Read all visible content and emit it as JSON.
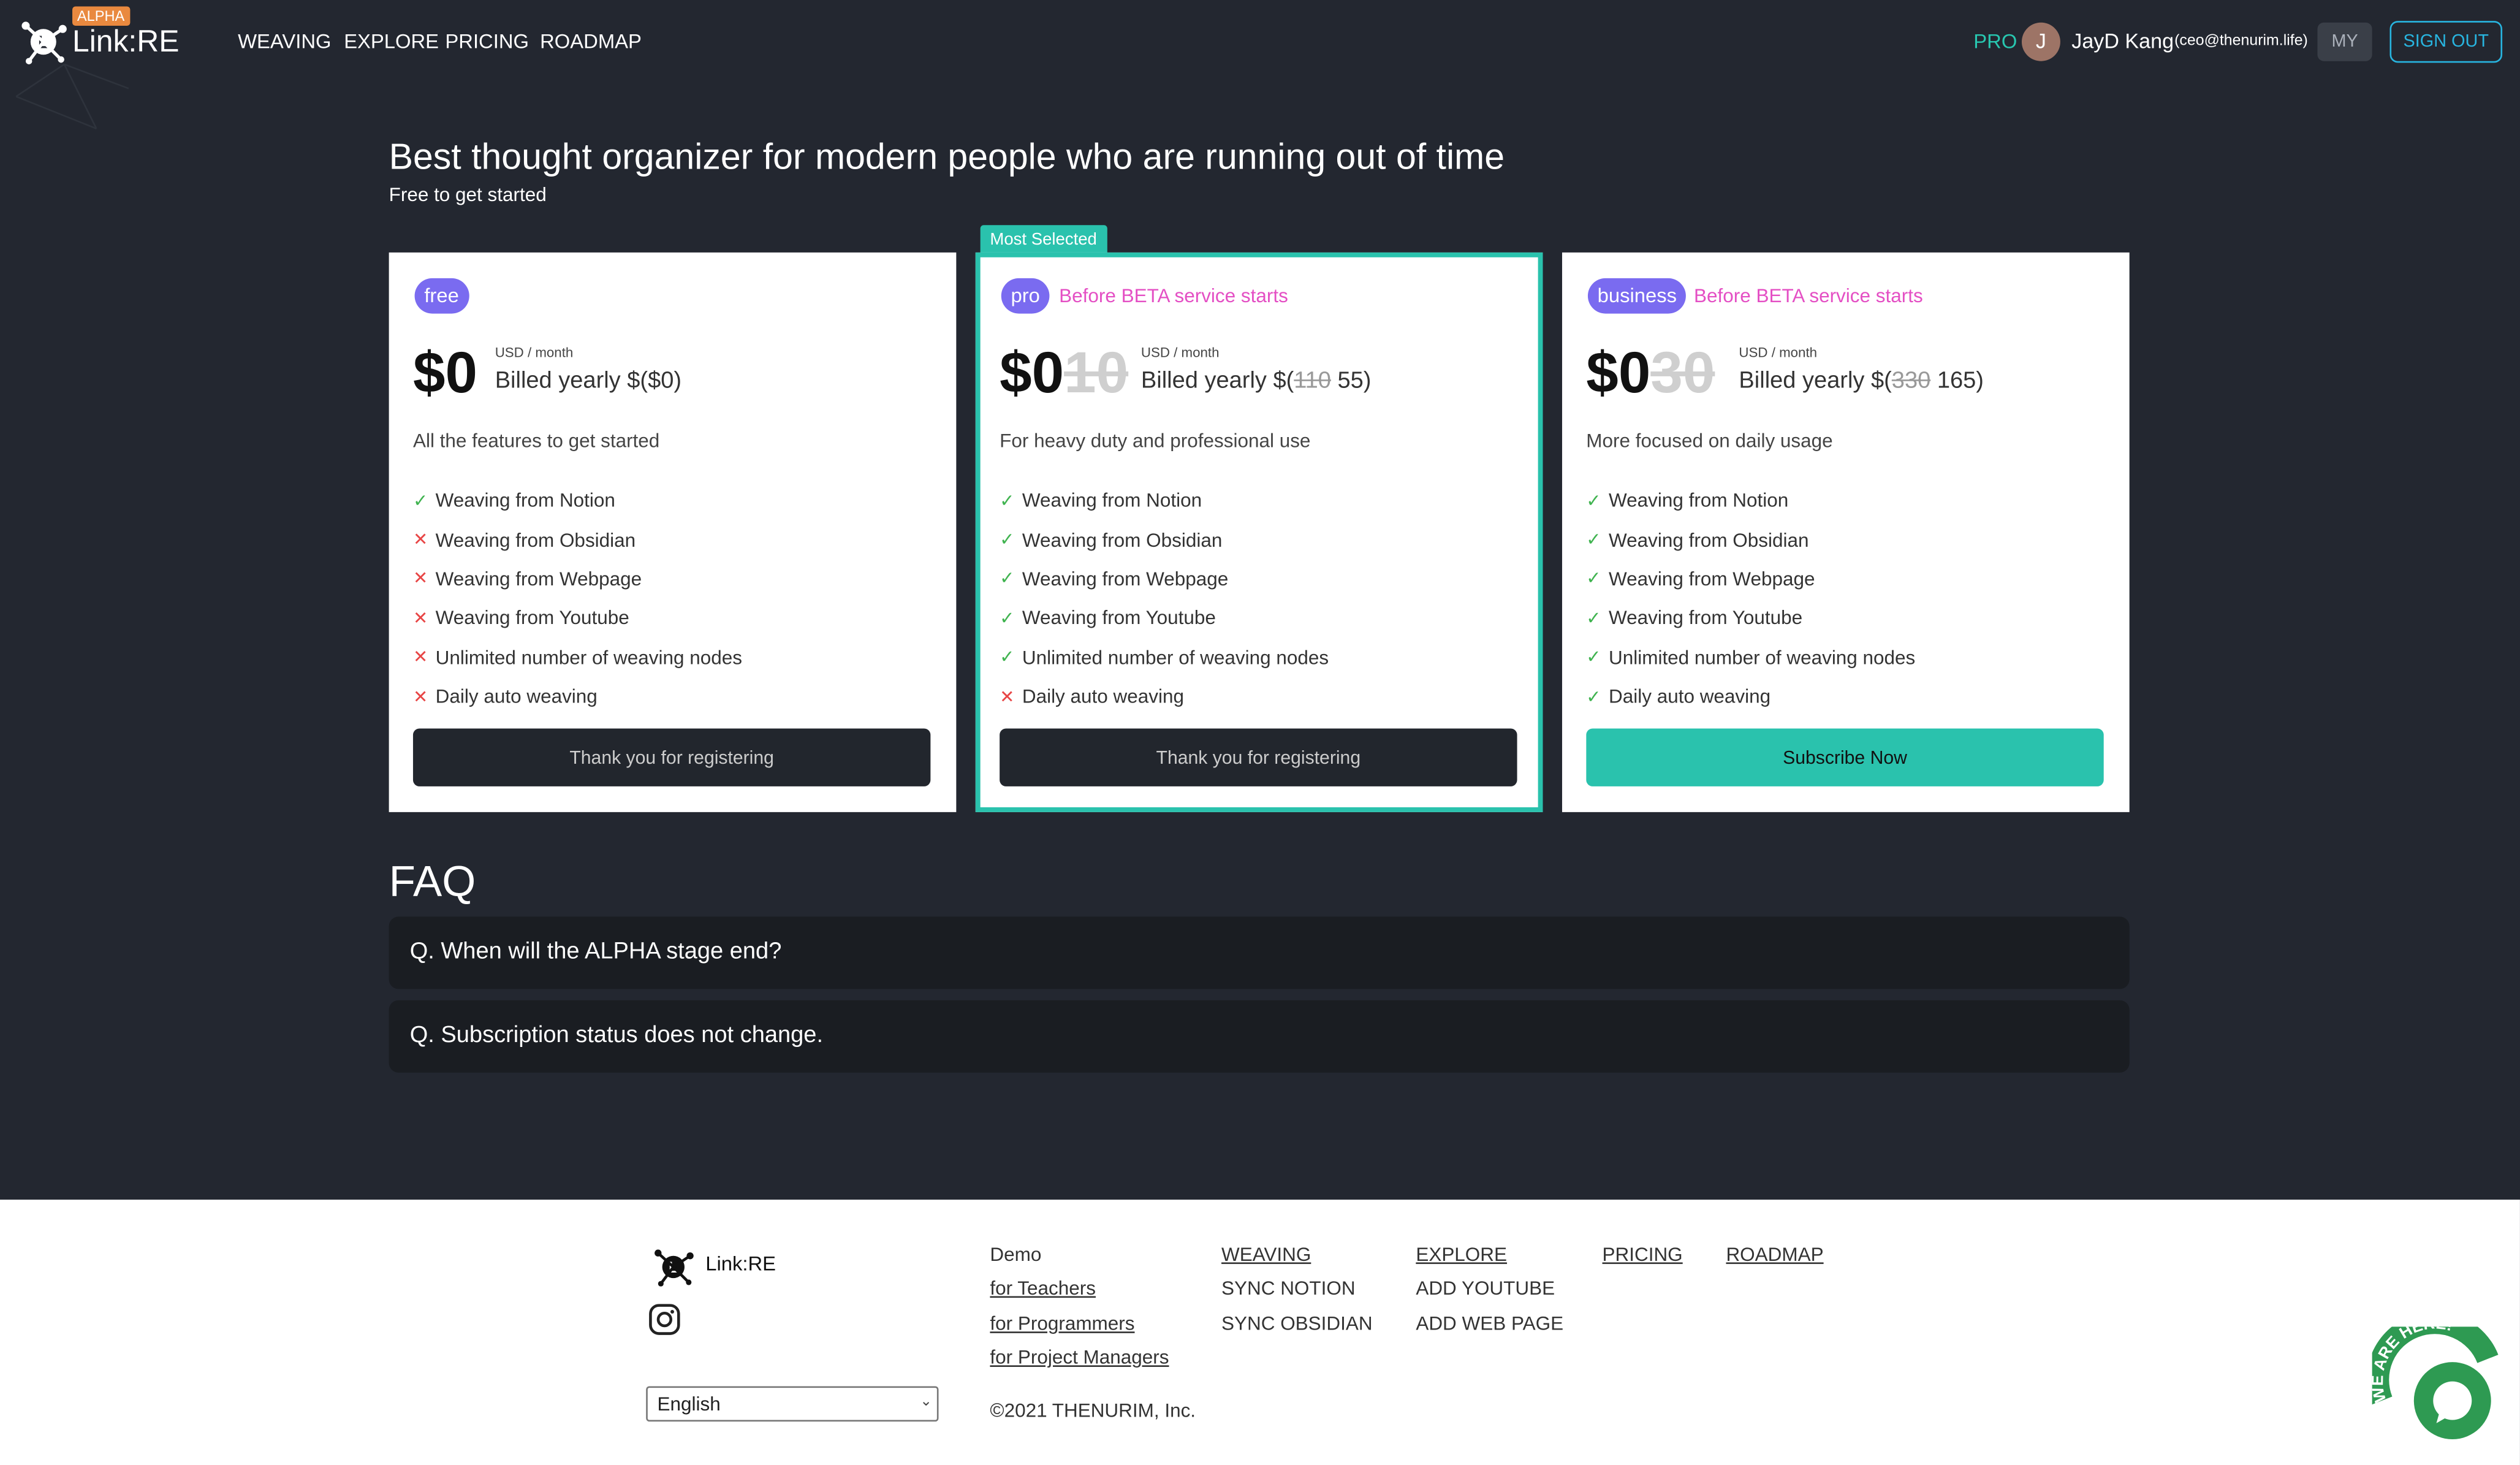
{
  "header": {
    "alpha_badge": "ALPHA",
    "logo_text": "Link:RE",
    "nav": [
      "WEAVING",
      "EXPLORE",
      "PRICING",
      "ROADMAP"
    ],
    "plan_label": "PRO",
    "avatar_initial": "J",
    "user_name": "JayD Kang",
    "user_email": "(ceo@thenurim.life)",
    "my_label": "MY",
    "signout_label": "SIGN OUT"
  },
  "hero": {
    "title": "Best thought organizer for modern people who are running out of time",
    "subtitle": "Free to get started"
  },
  "plans": [
    {
      "pill": "free",
      "note": "",
      "price": "$0",
      "old_price": "",
      "unit": "USD / month",
      "billed_prefix": "Billed yearly $(",
      "billed_old": "",
      "billed_value": "$0)",
      "description": "All the features to get started",
      "features": [
        {
          "label": "Weaving from Notion",
          "included": true
        },
        {
          "label": "Weaving from Obsidian",
          "included": false
        },
        {
          "label": "Weaving from Webpage",
          "included": false
        },
        {
          "label": "Weaving from Youtube",
          "included": false
        },
        {
          "label": "Unlimited number of weaving nodes",
          "included": false
        },
        {
          "label": "Daily auto weaving",
          "included": false
        }
      ],
      "cta": "Thank you for registering"
    },
    {
      "pill": "pro",
      "note": "Before BETA service starts",
      "price": "$0",
      "old_price": "10",
      "unit": "USD / month",
      "billed_prefix": "Billed yearly $(",
      "billed_old": "110",
      "billed_value": " 55)",
      "description": "For heavy duty and professional use",
      "features": [
        {
          "label": "Weaving from Notion",
          "included": true
        },
        {
          "label": "Weaving from Obsidian",
          "included": true
        },
        {
          "label": "Weaving from Webpage",
          "included": true
        },
        {
          "label": "Weaving from Youtube",
          "included": true
        },
        {
          "label": "Unlimited number of weaving nodes",
          "included": true
        },
        {
          "label": "Daily auto weaving",
          "included": false
        }
      ],
      "cta": "Thank you for registering",
      "badge": "Most Selected"
    },
    {
      "pill": "business",
      "note": "Before BETA service starts",
      "price": "$0",
      "old_price": "30",
      "unit": "USD / month",
      "billed_prefix": "Billed yearly $(",
      "billed_old": "330",
      "billed_value": " 165)",
      "description": "More focused on daily usage",
      "features": [
        {
          "label": "Weaving from Notion",
          "included": true
        },
        {
          "label": "Weaving from Obsidian",
          "included": true
        },
        {
          "label": "Weaving from Webpage",
          "included": true
        },
        {
          "label": "Weaving from Youtube",
          "included": true
        },
        {
          "label": "Unlimited number of weaving nodes",
          "included": true
        },
        {
          "label": "Daily auto weaving",
          "included": true
        }
      ],
      "cta": "Subscribe Now"
    }
  ],
  "faq": {
    "title": "FAQ",
    "items": [
      "Q. When will the ALPHA stage end?",
      "Q. Subscription status does not change."
    ]
  },
  "footer": {
    "logo_text": "Link:RE",
    "demo": [
      "Demo",
      "for Teachers",
      "for Programmers",
      "for Project Managers"
    ],
    "weaving": [
      "WEAVING",
      "SYNC NOTION",
      "SYNC OBSIDIAN"
    ],
    "explore": [
      "EXPLORE",
      "ADD YOUTUBE",
      "ADD WEB PAGE"
    ],
    "pricing": "PRICING",
    "roadmap": "ROADMAP",
    "language": "English",
    "copyright": "©2021 THENURIM, Inc.",
    "chat_badge": "WE ARE HERE!"
  },
  "colors": {
    "background": "#232730",
    "accent_teal": "#2ac2ad",
    "pill_purple": "#7a6bf0",
    "note_pink": "#e44fc4",
    "check_green": "#3fb34f",
    "cross_red": "#e84545"
  }
}
